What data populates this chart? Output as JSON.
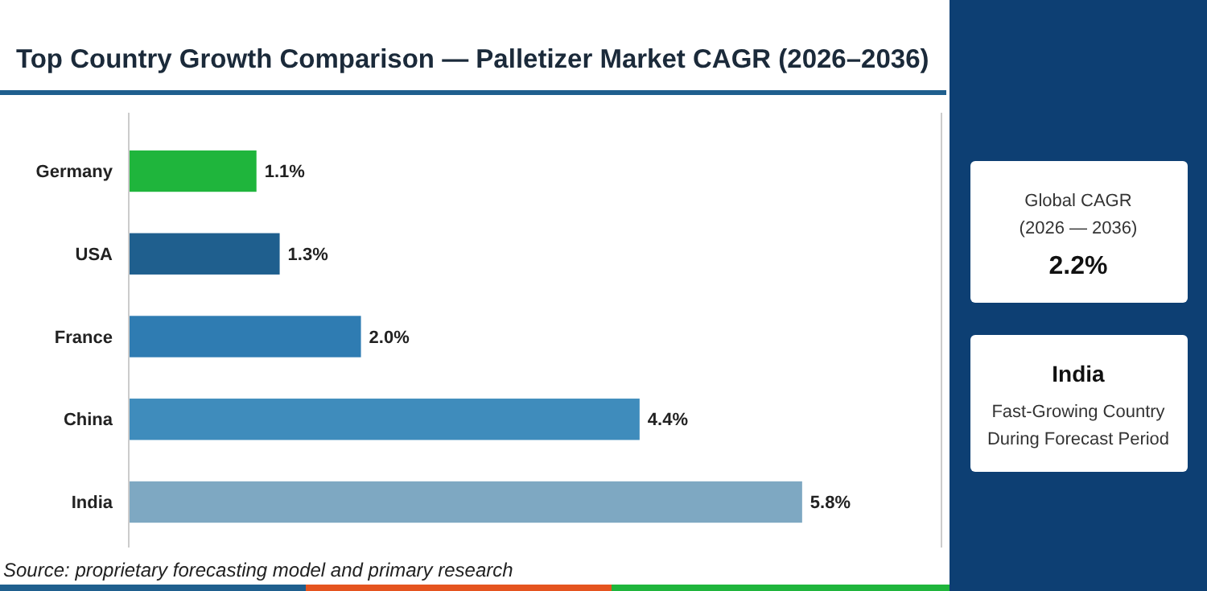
{
  "chart_data": {
    "type": "bar",
    "orientation": "horizontal",
    "title": "Top Country Growth Comparison — Palletizer Market CAGR (2026–2036)",
    "categories": [
      "Germany",
      "USA",
      "France",
      "China",
      "India"
    ],
    "values": [
      1.1,
      1.3,
      2.0,
      4.4,
      5.8
    ],
    "colors": [
      "#1fb53c",
      "#1f5f8e",
      "#2f7cb2",
      "#3f8cbc",
      "#7ea8c2"
    ],
    "xlim": [
      0,
      7
    ],
    "value_labels": [
      "1.1%",
      "1.3%",
      "2.0%",
      "4.4%",
      "5.8%"
    ],
    "annotations": [
      "Source: proprietary forecasting model and primary research",
      "Global CAGR",
      "(2026 — 2036)",
      "2.2%",
      "India",
      "Fast-Growing Country",
      "During Forecast Period"
    ]
  }
}
